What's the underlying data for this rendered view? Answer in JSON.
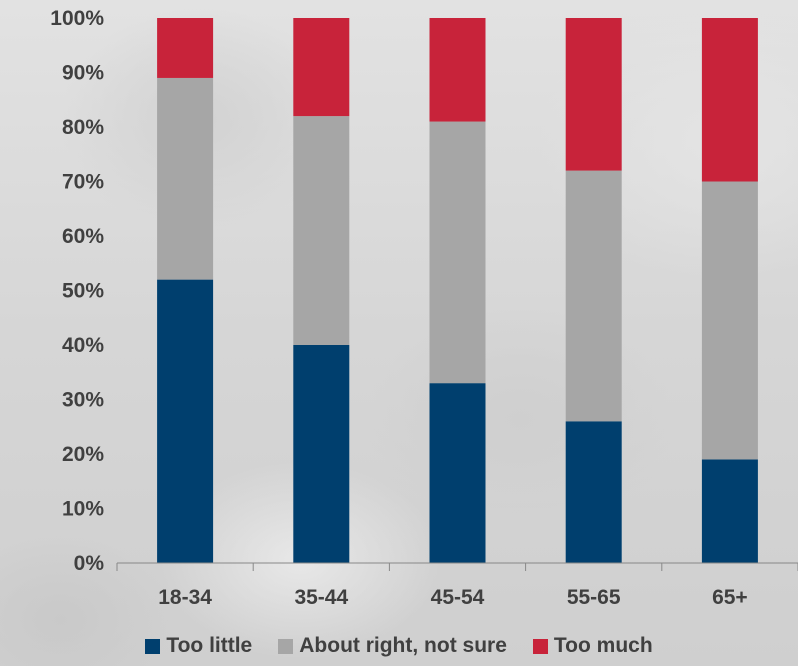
{
  "chart_data": {
    "type": "bar",
    "stacked": true,
    "categories": [
      "18-34",
      "35-44",
      "45-54",
      "55-65",
      "65+"
    ],
    "series": [
      {
        "name": "Too little",
        "color": "#003f6e",
        "values": [
          52,
          40,
          33,
          26,
          19
        ]
      },
      {
        "name": "About right, not sure",
        "color": "#a6a6a6",
        "values": [
          37,
          42,
          48,
          46,
          51
        ]
      },
      {
        "name": "Too much",
        "color": "#c8233a",
        "values": [
          11,
          18,
          19,
          28,
          30
        ]
      }
    ],
    "yticks": [
      "0%",
      "10%",
      "20%",
      "30%",
      "40%",
      "50%",
      "60%",
      "70%",
      "80%",
      "90%",
      "100%"
    ],
    "ylim": [
      0,
      100
    ],
    "legend_position": "bottom",
    "grid": false
  }
}
